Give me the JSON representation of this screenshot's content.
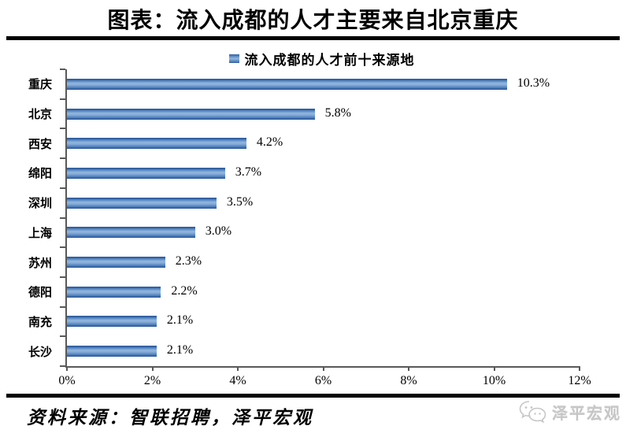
{
  "title": "图表：流入成都的人才主要来自北京重庆",
  "source": "资料来源：智联招聘，泽平宏观",
  "watermark": "泽平宏观",
  "colors": {
    "bar": "#4F81BD",
    "bar_dark_edge": "#2e5c9e",
    "bar_light_mid": "#93b8de",
    "axis": "#595959",
    "divider": "#000000",
    "watermark_gray": "#c6c6c6"
  },
  "chart_data": {
    "type": "bar",
    "orientation": "horizontal",
    "title": "流入成都的人才前十来源地",
    "categories": [
      "重庆",
      "北京",
      "西安",
      "绵阳",
      "深圳",
      "上海",
      "苏州",
      "德阳",
      "南充",
      "长沙"
    ],
    "values": [
      10.3,
      5.8,
      4.2,
      3.7,
      3.5,
      3.0,
      2.3,
      2.2,
      2.1,
      2.1
    ],
    "value_labels": [
      "10.3%",
      "5.8%",
      "4.2%",
      "3.7%",
      "3.5%",
      "3.0%",
      "2.3%",
      "2.2%",
      "2.1%",
      "2.1%"
    ],
    "xlabel": "",
    "ylabel": "",
    "xlim": [
      0,
      12
    ],
    "xticks": [
      "0%",
      "2%",
      "4%",
      "6%",
      "8%",
      "10%",
      "12%"
    ],
    "xtick_values": [
      0,
      2,
      4,
      6,
      8,
      10,
      12
    ],
    "grid": false,
    "legend_position": "top"
  }
}
